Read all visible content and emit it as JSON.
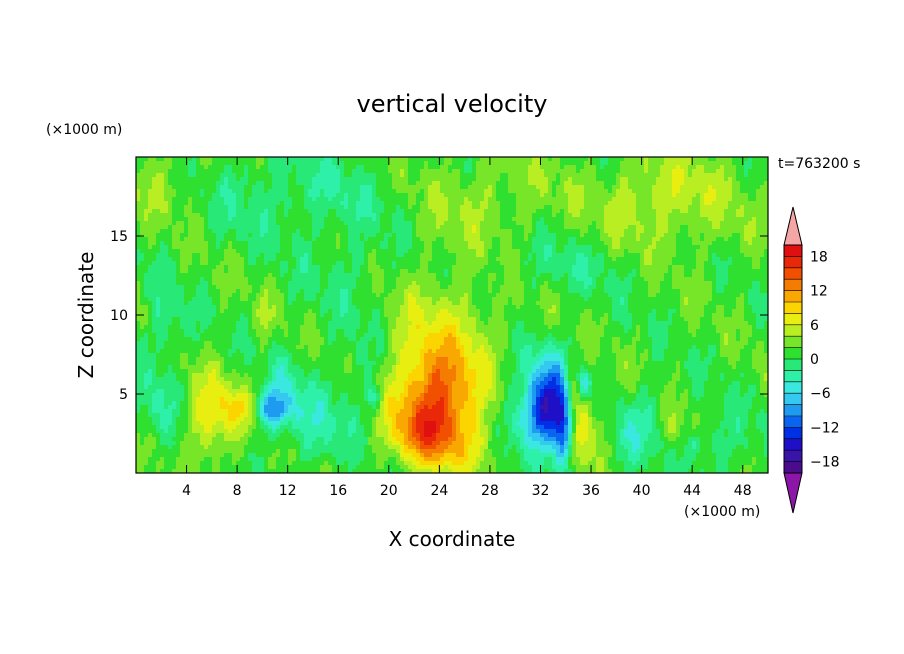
{
  "chart_data": {
    "type": "heatmap",
    "title": "vertical velocity",
    "xlabel": "X coordinate",
    "ylabel": "Z coordinate",
    "x_unit": "(×1000 m)",
    "y_unit": "(×1000 m)",
    "time_label": "t=763200 s",
    "xlim": [
      0,
      50
    ],
    "ylim": [
      0,
      20
    ],
    "x_ticks": [
      4,
      8,
      12,
      16,
      20,
      24,
      28,
      32,
      36,
      40,
      44,
      48
    ],
    "y_ticks": [
      5,
      10,
      15
    ],
    "colorbar": {
      "levels": [
        -20,
        -18,
        -16,
        -14,
        -12,
        -10,
        -8,
        -6,
        -4,
        -2,
        0,
        2,
        4,
        6,
        8,
        10,
        12,
        14,
        16,
        18,
        20
      ],
      "tick_values": [
        18,
        12,
        6,
        0,
        -6,
        -12,
        -18
      ],
      "tick_labels": [
        "18",
        "12",
        "6",
        "0",
        "−6",
        "−12",
        "−18"
      ],
      "colors": [
        "#4b0c8c",
        "#3a14a8",
        "#1f10c8",
        "#0030e6",
        "#0a64f2",
        "#1e9af0",
        "#35c8f0",
        "#3ae8e0",
        "#2ef0a8",
        "#28e878",
        "#30e030",
        "#78e628",
        "#b8ee22",
        "#e8ee10",
        "#fcd400",
        "#f8a800",
        "#f47c00",
        "#f05000",
        "#e82808",
        "#e01010"
      ],
      "under_color": "#8c16a8",
      "over_color": "#f4a6a6"
    },
    "features": [
      {
        "x": 24.2,
        "z": 4.6,
        "amp": 10,
        "sx": 2.2,
        "sz": 2.4
      },
      {
        "x": 22.6,
        "z": 2.6,
        "amp": 6,
        "sx": 2.0,
        "sz": 1.4
      },
      {
        "x": 22.5,
        "z": 6.2,
        "amp": 4,
        "sx": 3.2,
        "sz": 2.6
      },
      {
        "x": 25.5,
        "z": 1.6,
        "amp": 3,
        "sx": 2.5,
        "sz": 1.3
      },
      {
        "x": 24.5,
        "z": 10.5,
        "amp": 2.5,
        "sx": 5.5,
        "sz": 3.0
      },
      {
        "x": 32.6,
        "z": 4.4,
        "amp": -13,
        "sx": 1.1,
        "sz": 1.7
      },
      {
        "x": 33.8,
        "z": 2.4,
        "amp": -11,
        "sx": 0.5,
        "sz": 1.6
      },
      {
        "x": 31.3,
        "z": 3.2,
        "amp": -6,
        "sx": 1.4,
        "sz": 1.4
      },
      {
        "x": 32.0,
        "z": 6.4,
        "amp": -3,
        "sx": 2.2,
        "sz": 1.8
      },
      {
        "x": 35.2,
        "z": 3.2,
        "amp": 6,
        "sx": 0.6,
        "sz": 2.1
      },
      {
        "x": 34.4,
        "z": 5.6,
        "amp": 4,
        "sx": 0.4,
        "sz": 1.2
      },
      {
        "x": 35.4,
        "z": 5.6,
        "amp": -8,
        "sx": 0.35,
        "sz": 0.7
      },
      {
        "x": 36.8,
        "z": 2.8,
        "amp": 3,
        "sx": 0.9,
        "sz": 1.6
      },
      {
        "x": 38.5,
        "z": 2.0,
        "amp": -3,
        "sx": 1.0,
        "sz": 1.6
      },
      {
        "x": 40.5,
        "z": 3.4,
        "amp": -3,
        "sx": 1.2,
        "sz": 1.4
      },
      {
        "x": 6.0,
        "z": 3.0,
        "amp": 5,
        "sx": 1.4,
        "sz": 1.8
      },
      {
        "x": 8.3,
        "z": 4.1,
        "amp": 4,
        "sx": 0.8,
        "sz": 0.8
      },
      {
        "x": 7.0,
        "z": 4.8,
        "amp": 2.5,
        "sx": 2.0,
        "sz": 1.6
      },
      {
        "x": 10.9,
        "z": 4.0,
        "amp": -8,
        "sx": 0.9,
        "sz": 0.8
      },
      {
        "x": 11.5,
        "z": 5.0,
        "amp": -4,
        "sx": 1.8,
        "sz": 1.8
      },
      {
        "x": 10.0,
        "z": 6.2,
        "amp": 2.5,
        "sx": 0.4,
        "sz": 0.8
      },
      {
        "x": 10.1,
        "z": 10.0,
        "amp": 2.5,
        "sx": 0.4,
        "sz": 1.2
      },
      {
        "x": 14.5,
        "z": 2.6,
        "amp": -3,
        "sx": 1.6,
        "sz": 1.6
      },
      {
        "x": 18.8,
        "z": 4.8,
        "amp": -5,
        "sx": 0.4,
        "sz": 0.5
      },
      {
        "x": 18.0,
        "z": 6.5,
        "amp": -3.5,
        "sx": 1.8,
        "sz": 2.5
      },
      {
        "x": 17.5,
        "z": 12.5,
        "amp": -2.5,
        "sx": 3.0,
        "sz": 2.0
      },
      {
        "x": 1.8,
        "z": 9.5,
        "amp": -3,
        "sx": 1.4,
        "sz": 1.6
      },
      {
        "x": 2.0,
        "z": 4.5,
        "amp": -3,
        "sx": 1.0,
        "sz": 2.0
      },
      {
        "x": 0.8,
        "z": 10.0,
        "amp": 2.5,
        "sx": 0.5,
        "sz": 0.8
      },
      {
        "x": 9.0,
        "z": 18.0,
        "amp": -2.5,
        "sx": 3.0,
        "sz": 2.0
      },
      {
        "x": 33.0,
        "z": 13.0,
        "amp": -2.5,
        "sx": 4.0,
        "sz": 1.5
      },
      {
        "x": 44.0,
        "z": 17.5,
        "amp": 2.5,
        "sx": 4.0,
        "sz": 2.5
      },
      {
        "x": 46.5,
        "z": 1.8,
        "amp": -2.5,
        "sx": 2.0,
        "sz": 1.5
      },
      {
        "x": 44.3,
        "z": 1.8,
        "amp": -3,
        "sx": 0.4,
        "sz": 0.4
      },
      {
        "x": 42.5,
        "z": 3.0,
        "amp": 3,
        "sx": 0.8,
        "sz": 0.9
      },
      {
        "x": 2.0,
        "z": 18.5,
        "amp": 2.5,
        "sx": 3.0,
        "sz": 1.5
      },
      {
        "x": 40.0,
        "z": 17.0,
        "amp": 2.5,
        "sx": 3.0,
        "sz": 2.0
      },
      {
        "x": 16.0,
        "z": 17.5,
        "amp": -2.5,
        "sx": 3.0,
        "sz": 1.8
      },
      {
        "x": 28.0,
        "z": 17.5,
        "amp": 2.5,
        "sx": 4.0,
        "sz": 2.0
      }
    ]
  }
}
